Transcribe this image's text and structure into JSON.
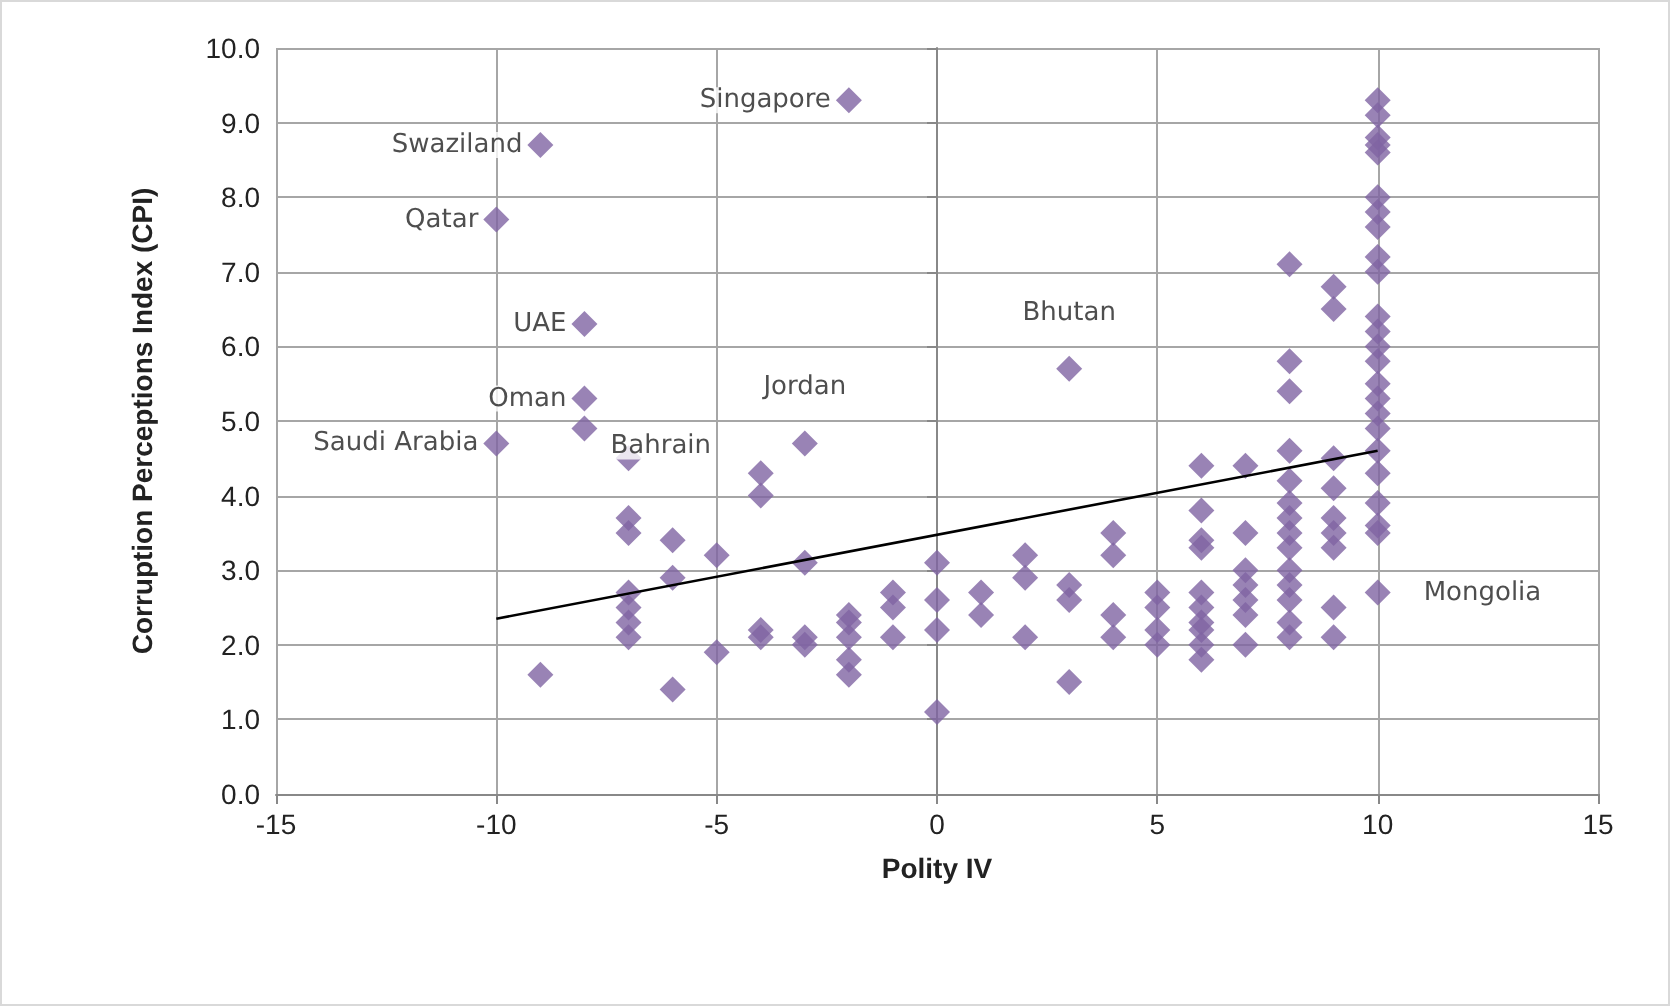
{
  "chart_data": {
    "type": "scatter",
    "xlabel": "Polity IV",
    "ylabel": "Corruption Perceptions Index (CPI)",
    "xlim": [
      -15,
      15
    ],
    "xticks": [
      -15,
      -10,
      -5,
      0,
      5,
      10,
      15
    ],
    "ylim": [
      0,
      10
    ],
    "yticks": [
      {
        "value": 0,
        "label": "0.0"
      },
      {
        "value": 1,
        "label": "1.0"
      },
      {
        "value": 2,
        "label": "2.0"
      },
      {
        "value": 3,
        "label": "3.0"
      },
      {
        "value": 4,
        "label": "4.0"
      },
      {
        "value": 5,
        "label": "5.0"
      },
      {
        "value": 6,
        "label": "6.0"
      },
      {
        "value": 7,
        "label": "7.0"
      },
      {
        "value": 8,
        "label": "8.0"
      },
      {
        "value": 9,
        "label": "9.0"
      },
      {
        "value": 10,
        "label": "10.0"
      }
    ],
    "grid": true,
    "marker": "diamond",
    "series": [
      {
        "color": "#8064a2",
        "x": [
          -2,
          -9,
          -10,
          -8,
          -8,
          -8,
          -10,
          -3,
          3,
          10,
          -9,
          -7,
          -7,
          -7,
          -7,
          -7,
          -7,
          -7,
          -6,
          -6,
          -6,
          -5,
          -5,
          -4,
          -4,
          -4,
          -4,
          -3,
          -3,
          -3,
          -2,
          -2,
          -2,
          -2,
          -2,
          -1,
          -1,
          -1,
          0,
          0,
          0,
          0,
          1,
          1,
          2,
          2,
          2,
          3,
          3,
          3,
          4,
          4,
          4,
          4,
          5,
          5,
          5,
          5,
          6,
          6,
          6,
          6,
          6,
          6,
          6,
          6,
          6,
          6,
          7,
          7,
          7,
          7,
          7,
          7,
          7,
          8,
          8,
          8,
          8,
          8,
          8,
          8,
          8,
          8,
          8,
          8,
          8,
          8,
          8,
          9,
          9,
          9,
          9,
          9,
          9,
          9,
          9,
          9,
          10,
          10,
          10,
          10,
          10,
          10,
          10,
          10,
          10,
          10,
          10,
          10,
          10,
          10,
          10,
          10,
          10,
          10,
          10,
          10,
          10,
          10,
          10
        ],
        "values": [
          9.3,
          8.7,
          7.7,
          6.3,
          5.3,
          4.9,
          4.7,
          4.7,
          5.7,
          2.7,
          1.6,
          4.5,
          3.7,
          3.5,
          2.7,
          2.5,
          2.3,
          2.1,
          3.4,
          2.9,
          1.4,
          3.2,
          1.9,
          4.3,
          4.0,
          2.2,
          2.1,
          3.1,
          2.1,
          2.0,
          2.4,
          2.3,
          2.1,
          1.8,
          1.6,
          2.7,
          2.5,
          2.1,
          3.1,
          2.6,
          2.2,
          1.1,
          2.7,
          2.4,
          3.2,
          2.9,
          2.1,
          2.8,
          2.6,
          1.5,
          3.5,
          3.2,
          2.4,
          2.1,
          2.7,
          2.5,
          2.2,
          2.0,
          4.4,
          3.8,
          3.4,
          3.3,
          2.7,
          2.5,
          2.3,
          2.2,
          2.0,
          1.8,
          4.4,
          3.5,
          3.0,
          2.8,
          2.6,
          2.4,
          2.0,
          7.1,
          5.8,
          5.4,
          4.6,
          4.2,
          3.9,
          3.7,
          3.5,
          3.3,
          3.0,
          2.8,
          2.6,
          2.3,
          2.1,
          6.8,
          6.5,
          4.5,
          4.1,
          3.7,
          3.5,
          3.3,
          2.5,
          2.1,
          9.3,
          9.1,
          8.8,
          8.7,
          8.6,
          8.0,
          7.8,
          7.6,
          7.2,
          7.0,
          6.4,
          6.2,
          6.0,
          5.8,
          5.5,
          5.3,
          5.1,
          4.9,
          4.6,
          4.3,
          3.9,
          3.6,
          3.5
        ]
      },
      {
        "type": "line",
        "color": "#000000",
        "x": [
          -10,
          10
        ],
        "values": [
          2.35,
          4.6
        ],
        "marker": "none"
      }
    ],
    "annotations": [
      {
        "text": "Singapore",
        "x": -2,
        "y": 9.3
      },
      {
        "text": "Swaziland",
        "x": -9,
        "y": 8.7
      },
      {
        "text": "Qatar",
        "x": -10,
        "y": 7.7
      },
      {
        "text": "UAE",
        "x": -8,
        "y": 6.3
      },
      {
        "text": "Oman",
        "x": -8,
        "y": 5.3
      },
      {
        "text": "Bahrain",
        "x": -8,
        "y": 4.9
      },
      {
        "text": "Saudi Arabia",
        "x": -10,
        "y": 4.7
      },
      {
        "text": "Jordan",
        "x": -3,
        "y": 4.7
      },
      {
        "text": "Bhutan",
        "x": 3,
        "y": 5.7
      },
      {
        "text": "Mongolia",
        "x": 10,
        "y": 2.7
      }
    ]
  }
}
